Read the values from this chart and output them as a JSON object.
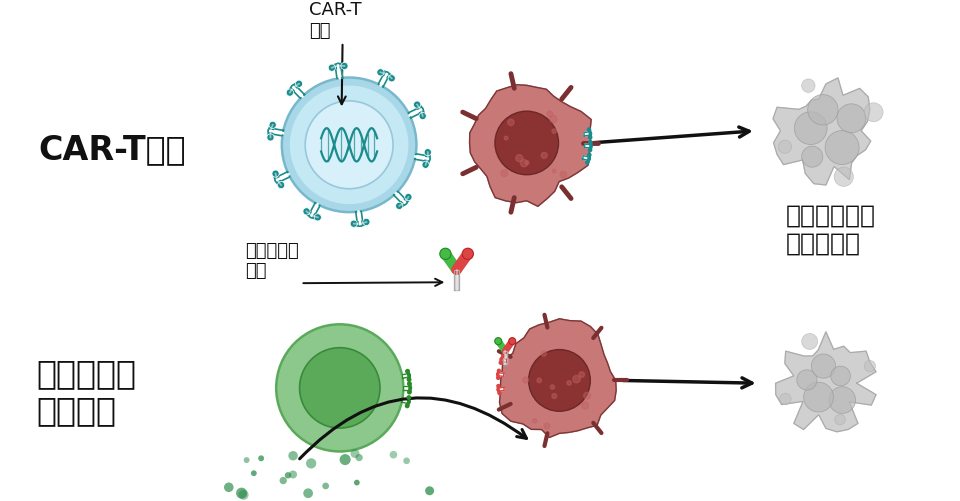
{
  "bg_color": "#ffffff",
  "car_t_label": "CAR-T療法",
  "bispecific_label": "二重特異性\n抗体療法",
  "death_label": "悪性リンパ腫\n細胞が死滅",
  "cart_cell_label": "CAR-T\n細胞",
  "bispecific_ab_label": "二重特異性\n抗体",
  "teal_color": "#1a8c8c",
  "teal_light": "#ffffff",
  "light_blue_outer": "#a8d8e8",
  "light_blue_mid": "#c5e8f5",
  "light_blue_inner": "#d8f0fa",
  "cancer_outer": "#c97878",
  "cancer_inner": "#8b3232",
  "dead_cell_color": "#c0c0c0",
  "green_cell_outer": "#8cc88c",
  "green_cell_inner": "#5aaa5a",
  "gray_text": "#111111",
  "arrow_color": "#111111"
}
